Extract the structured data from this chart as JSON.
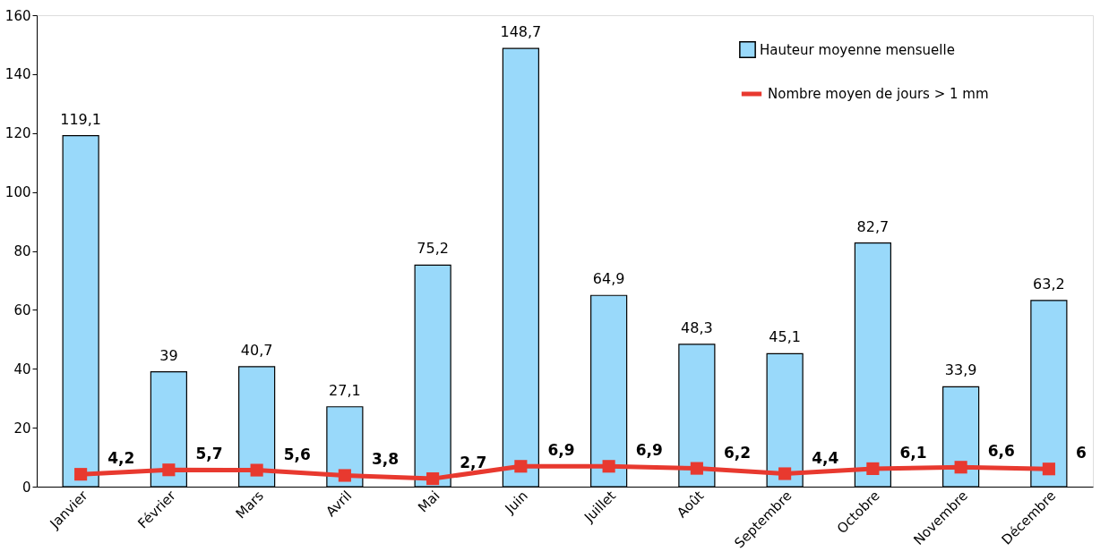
{
  "chart_data": {
    "type": "bar",
    "categories": [
      "Janvier",
      "Février",
      "Mars",
      "Avril",
      "Mai",
      "Juin",
      "Juillet",
      "Août",
      "Septembre",
      "Octobre",
      "Novembre",
      "Décembre"
    ],
    "series": [
      {
        "name": "Hauteur moyenne mensuelle",
        "color": "#99d9fa",
        "values": [
          119.1,
          39,
          40.7,
          27.1,
          75.2,
          148.7,
          64.9,
          48.3,
          45.1,
          82.7,
          33.9,
          63.2
        ],
        "value_labels": [
          "119,1",
          "39",
          "40,7",
          "27,1",
          "75,2",
          "148,7",
          "64,9",
          "48,3",
          "45,1",
          "82,7",
          "33,9",
          "63,2"
        ]
      },
      {
        "name": "Nombre moyen de jours > 1 mm",
        "type": "line",
        "color": "#e8392f",
        "marker": "square",
        "values": [
          4.2,
          5.7,
          5.6,
          3.8,
          2.7,
          6.9,
          6.9,
          6.2,
          4.4,
          6.1,
          6.6,
          6
        ],
        "value_labels": [
          "4,2",
          "5,7",
          "5,6",
          "3,8",
          "2,7",
          "6,9",
          "6,9",
          "6,2",
          "4,4",
          "6,1",
          "6,6",
          "6"
        ]
      }
    ],
    "ylim": [
      0,
      160
    ],
    "yticks": [
      0,
      20,
      40,
      60,
      80,
      100,
      120,
      140,
      160
    ],
    "legend": "top right",
    "grid": false
  }
}
